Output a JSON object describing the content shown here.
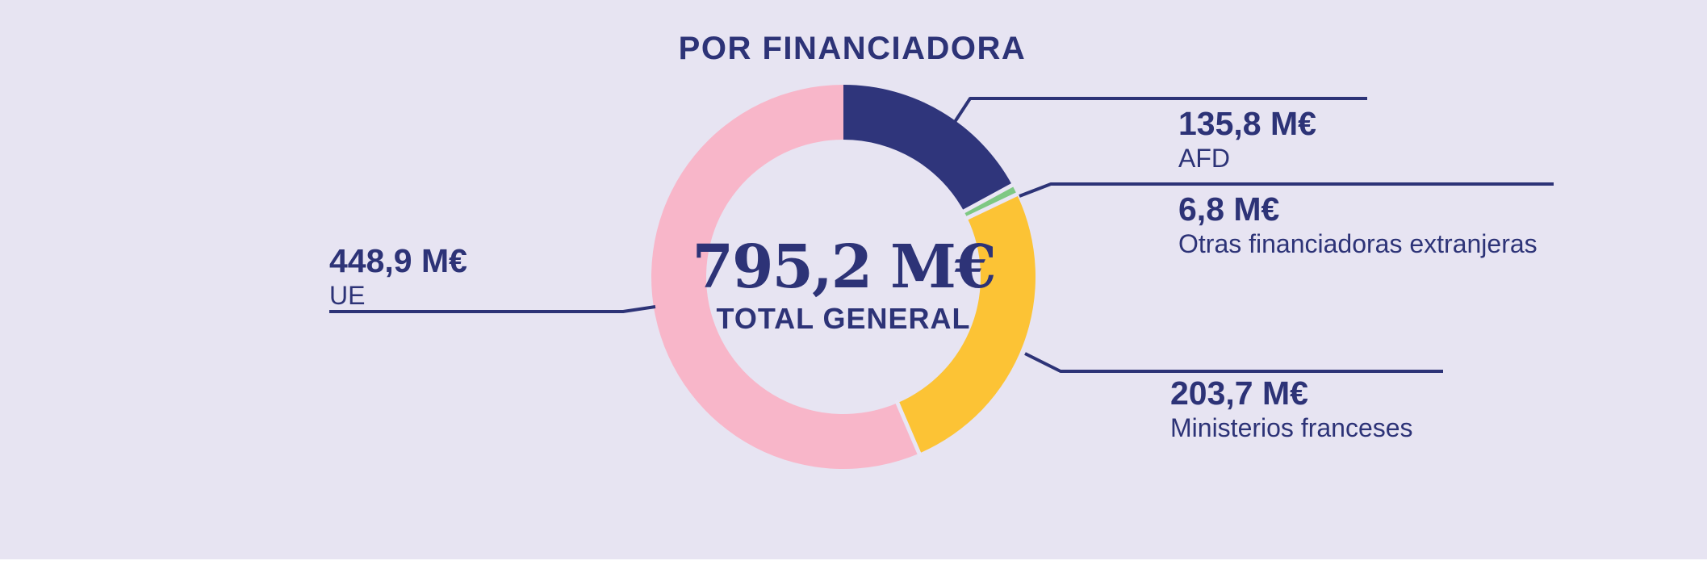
{
  "title": "POR FINANCIADORA",
  "center": {
    "value": "795,2 M€",
    "caption": "TOTAL GENERAL"
  },
  "chart_data": {
    "type": "pie",
    "subtype": "donut",
    "title": "POR FINANCIADORA",
    "center_value": "795,2 M€",
    "center_caption": "TOTAL GENERAL",
    "total": 795.2,
    "unit": "M€",
    "start_angle_deg": 0,
    "direction": "clockwise",
    "legend_position": "callout-labels",
    "segments": [
      {
        "label": "AFD",
        "value": 135.8,
        "display": "135,8 M€",
        "color": "#2F357B"
      },
      {
        "label": "Otras financiadoras extranjeras",
        "value": 6.8,
        "display": "6,8 M€",
        "color": "#7EC883"
      },
      {
        "label": "Ministerios franceses",
        "value": 203.7,
        "display": "203,7 M€",
        "color": "#FCC335"
      },
      {
        "label": "UE",
        "value": 448.9,
        "display": "448,9 M€",
        "color": "#F8B6C9"
      }
    ]
  },
  "colors": {
    "background": "#E7E4F2",
    "text": "#2D3377",
    "connector": "#2D3377",
    "segment_gap": "#E9E6F4",
    "bottom_strip": "#FFFFFF"
  }
}
